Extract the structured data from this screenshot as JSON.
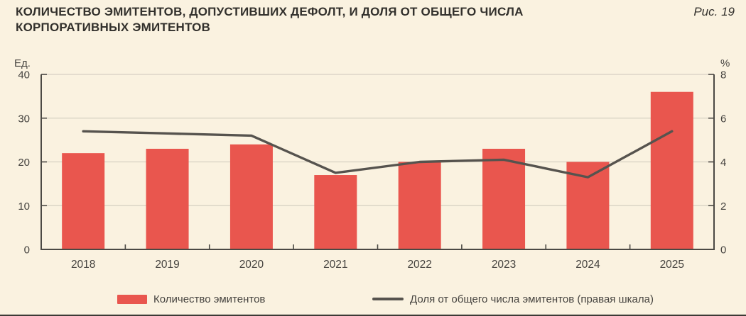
{
  "title": "КОЛИЧЕСТВО ЭМИТЕНТОВ, ДОПУСТИВШИХ ДЕФОЛТ, И ДОЛЯ ОТ ОБЩЕГО ЧИСЛА КОРПОРАТИВНЫХ ЭМИТЕНТОВ",
  "fig_label": "Рис. 19",
  "colors": {
    "background": "#faf2e0",
    "bar": "#e9564e",
    "line": "#56534e",
    "axis": "#4b4944",
    "gridline": "#d6d0c2",
    "text": "#45433f",
    "title_text": "#32302c"
  },
  "legend": {
    "items": [
      {
        "label": "Количество эмитентов",
        "swatch": "bar",
        "color": "#e9564e"
      },
      {
        "label": "Доля от общего числа эмитентов (правая шкала)",
        "swatch": "line",
        "color": "#56534e"
      }
    ]
  },
  "chart_data": {
    "type": "bar",
    "title": "КОЛИЧЕСТВО ЭМИТЕНТОВ, ДОПУСТИВШИХ ДЕФОЛТ, И ДОЛЯ ОТ ОБЩЕГО ЧИСЛА КОРПОРАТИВНЫХ ЭМИТЕНТОВ",
    "categories": [
      "2018",
      "2019",
      "2020",
      "2021",
      "2022",
      "2023",
      "2024",
      "2025"
    ],
    "series": [
      {
        "name": "Количество эмитентов",
        "type": "bar",
        "axis": "left",
        "color": "#e9564e",
        "values": [
          22,
          23,
          24,
          17,
          20,
          23,
          20,
          36
        ]
      },
      {
        "name": "Доля от общего числа эмитентов (правая шкала)",
        "type": "line",
        "axis": "right",
        "color": "#56534e",
        "values": [
          5.4,
          5.3,
          5.2,
          3.5,
          4.0,
          4.1,
          3.3,
          5.4
        ]
      }
    ],
    "left_axis": {
      "label": "Ед.",
      "min": 0,
      "max": 40,
      "ticks": [
        0,
        10,
        20,
        30,
        40
      ]
    },
    "right_axis": {
      "label": "%",
      "min": 0,
      "max": 8,
      "ticks": [
        0,
        2,
        4,
        6,
        8
      ]
    },
    "grid": true,
    "legend_position": "bottom"
  }
}
